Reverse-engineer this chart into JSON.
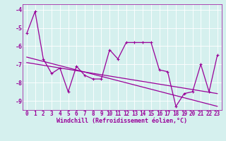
{
  "x": [
    0,
    1,
    2,
    3,
    4,
    5,
    6,
    7,
    8,
    9,
    10,
    11,
    12,
    13,
    14,
    15,
    16,
    17,
    18,
    19,
    20,
    21,
    22,
    23
  ],
  "line_main": [
    -5.3,
    -4.1,
    -6.7,
    -7.5,
    -7.2,
    -8.5,
    -7.1,
    -7.6,
    -7.8,
    -7.8,
    -6.2,
    -6.7,
    -5.8,
    -5.8,
    -5.8,
    -5.8,
    -7.3,
    -7.4,
    -9.3,
    -8.6,
    -8.5,
    -7.0,
    -8.5,
    -6.5
  ],
  "trend1_x": [
    0,
    23
  ],
  "trend1_y": [
    -6.6,
    -9.3
  ],
  "trend2_x": [
    0,
    23
  ],
  "trend2_y": [
    -6.9,
    -8.6
  ],
  "color": "#990099",
  "bg_color": "#d5f0ee",
  "xlabel": "Windchill (Refroidissement éolien,°C)",
  "ylim": [
    -9.5,
    -3.7
  ],
  "xlim": [
    -0.5,
    23.5
  ],
  "yticks": [
    -9,
    -8,
    -7,
    -6,
    -5,
    -4
  ],
  "xticks": [
    0,
    1,
    2,
    3,
    4,
    5,
    6,
    7,
    8,
    9,
    10,
    11,
    12,
    13,
    14,
    15,
    16,
    17,
    18,
    19,
    20,
    21,
    22,
    23
  ],
  "xlabel_fontsize": 6,
  "tick_fontsize": 5.5,
  "line_width": 0.9,
  "marker_size": 3
}
